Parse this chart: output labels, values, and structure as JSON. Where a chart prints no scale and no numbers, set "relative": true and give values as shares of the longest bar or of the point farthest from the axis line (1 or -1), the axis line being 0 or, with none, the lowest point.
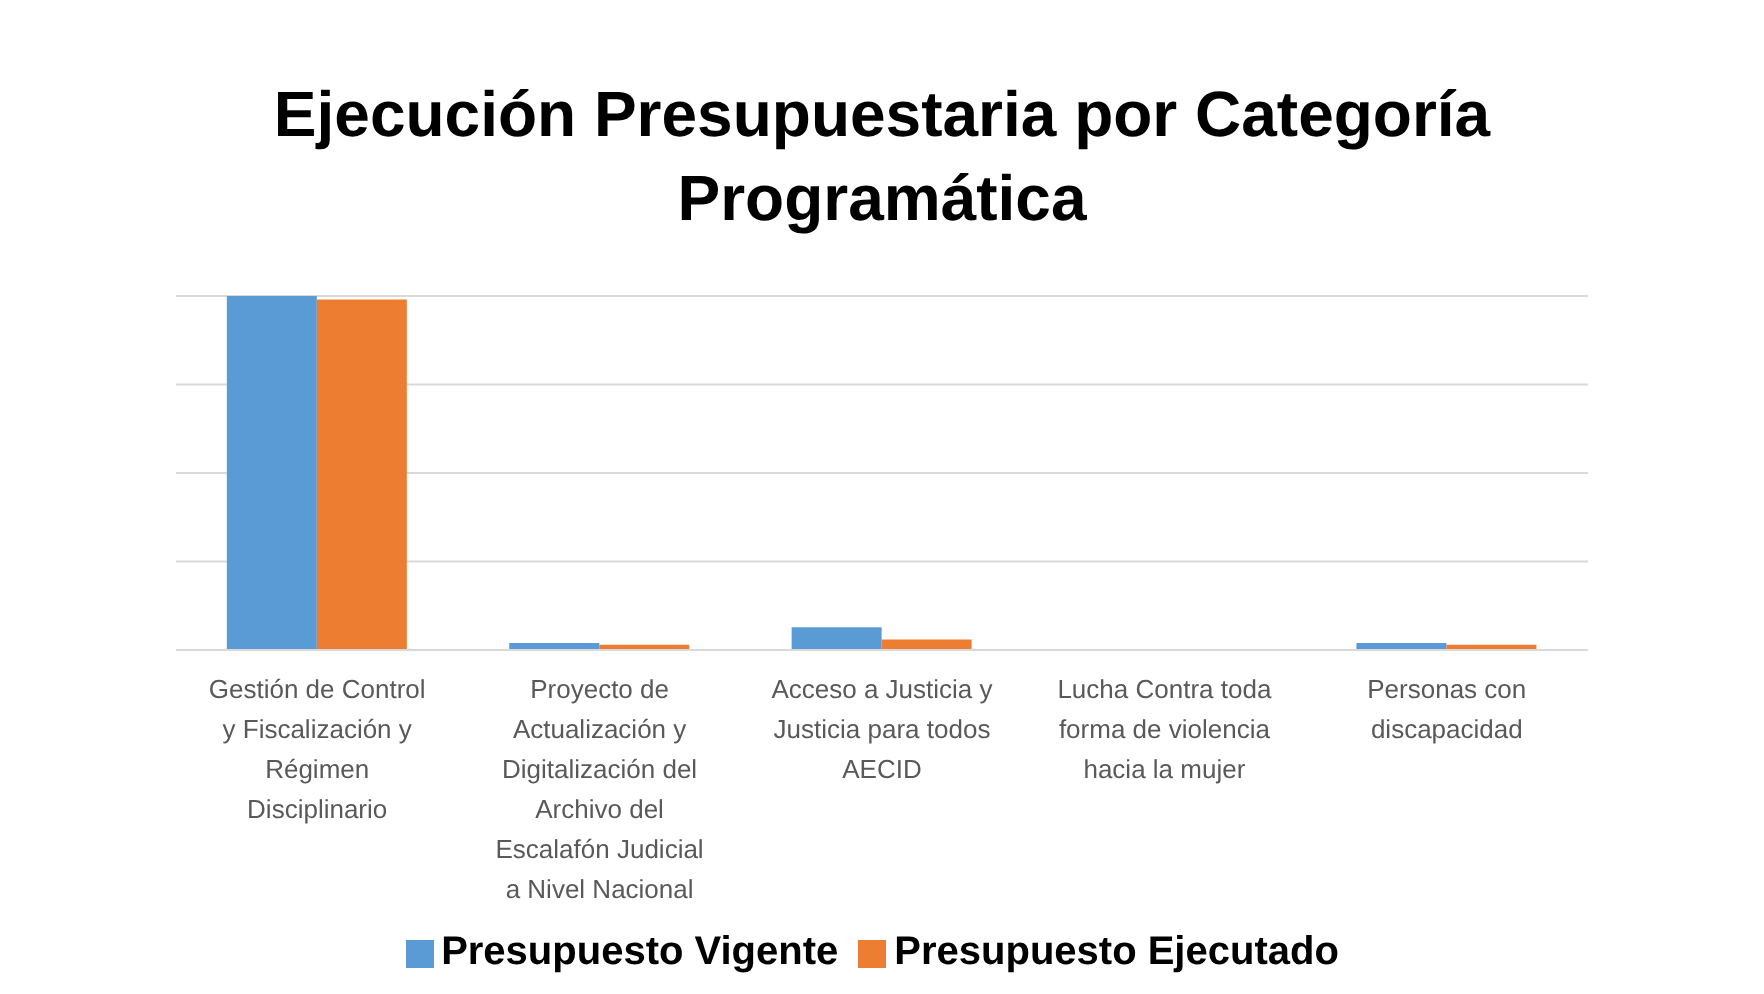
{
  "chart_data": {
    "type": "bar",
    "title": "Ejecución Presupuestaria por Categoría Programática",
    "relative": true,
    "grid": "y",
    "legend": "bottom",
    "categories": [
      "Gestión de Control y Fiscalización y Régimen Disciplinario",
      "Proyecto de Actualización y Digitalización del Archivo del Escalafón Judicial a Nivel Nacional",
      "Acceso a Justicia y Justicia para todos AECID",
      "Lucha Contra toda forma de violencia hacia la mujer",
      "Personas con discapacidad"
    ],
    "series": [
      {
        "name": "Presupuesto Vigente",
        "color": "#5b9bd5",
        "values": [
          1,
          0.02,
          0.064,
          0,
          0.02
        ]
      },
      {
        "name": "Presupuesto Ejecutado",
        "color": "#ed7d31",
        "values": [
          0.99,
          0.015,
          0.03,
          0,
          0.015
        ]
      }
    ]
  }
}
